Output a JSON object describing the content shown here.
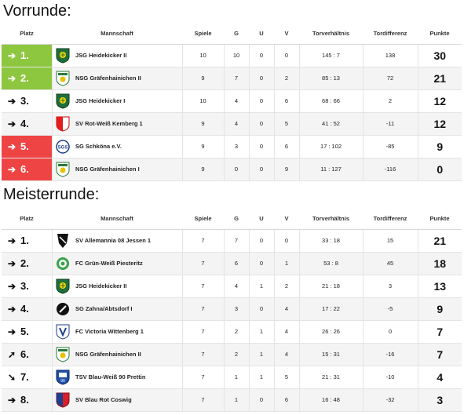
{
  "vorrunde": {
    "title": "Vorrunde:",
    "headers": [
      "Platz",
      "Mannschaft",
      "Spiele",
      "G",
      "U",
      "V",
      "Torverhältnis",
      "Tordifferenz",
      "Punkte"
    ],
    "rows": [
      {
        "arrow": "➔",
        "rank": "1.",
        "team": "JSG Heidekicker II",
        "spiele": "10",
        "g": "10",
        "u": "0",
        "v": "0",
        "tore": "145 : 7",
        "diff": "138",
        "punkte": "30",
        "highlight": "green",
        "crest": "heide"
      },
      {
        "arrow": "➔",
        "rank": "2.",
        "team": "NSG Gräfenhainichen II",
        "spiele": "9",
        "g": "7",
        "u": "0",
        "v": "2",
        "tore": "85 : 13",
        "diff": "72",
        "punkte": "21",
        "highlight": "green",
        "crest": "graefen"
      },
      {
        "arrow": "➔",
        "rank": "3.",
        "team": "JSG Heidekicker I",
        "spiele": "10",
        "g": "4",
        "u": "0",
        "v": "6",
        "tore": "68 : 66",
        "diff": "2",
        "punkte": "12",
        "highlight": "",
        "crest": "heide"
      },
      {
        "arrow": "➔",
        "rank": "4.",
        "team": "SV Rot-Weiß Kemberg 1",
        "spiele": "9",
        "g": "4",
        "u": "0",
        "v": "5",
        "tore": "41 : 52",
        "diff": "-11",
        "punkte": "12",
        "highlight": "",
        "crest": "kemberg"
      },
      {
        "arrow": "➔",
        "rank": "5.",
        "team": "SG Schköna e.V.",
        "spiele": "9",
        "g": "3",
        "u": "0",
        "v": "6",
        "tore": "17 : 102",
        "diff": "-85",
        "punkte": "9",
        "highlight": "red",
        "crest": "schkoena"
      },
      {
        "arrow": "➔",
        "rank": "6.",
        "team": "NSG Gräfenhainichen I",
        "spiele": "9",
        "g": "0",
        "u": "0",
        "v": "9",
        "tore": "11 : 127",
        "diff": "-116",
        "punkte": "0",
        "highlight": "red",
        "crest": "graefen"
      }
    ]
  },
  "meisterrunde": {
    "title": "Meisterrunde:",
    "headers": [
      "Platz",
      "Mannschaft",
      "Spiele",
      "G",
      "U",
      "V",
      "Torverhältnis",
      "Tordifferenz",
      "Punkte"
    ],
    "rows": [
      {
        "arrow": "➔",
        "rank": "1.",
        "team": "SV Allemannia 08 Jessen 1",
        "spiele": "7",
        "g": "7",
        "u": "0",
        "v": "0",
        "tore": "33 : 18",
        "diff": "15",
        "punkte": "21",
        "highlight": "",
        "crest": "jessen"
      },
      {
        "arrow": "➔",
        "rank": "2.",
        "team": "FC Grün-Weiß Piesteritz",
        "spiele": "7",
        "g": "6",
        "u": "0",
        "v": "1",
        "tore": "53 : 8",
        "diff": "45",
        "punkte": "18",
        "highlight": "",
        "crest": "piesteritz"
      },
      {
        "arrow": "➔",
        "rank": "3.",
        "team": "JSG Heidekicker II",
        "spiele": "7",
        "g": "4",
        "u": "1",
        "v": "2",
        "tore": "21 : 18",
        "diff": "3",
        "punkte": "13",
        "highlight": "",
        "crest": "heide"
      },
      {
        "arrow": "➔",
        "rank": "4.",
        "team": "SG Zahna/Abtsdorf I",
        "spiele": "7",
        "g": "3",
        "u": "0",
        "v": "4",
        "tore": "17 : 22",
        "diff": "-5",
        "punkte": "9",
        "highlight": "",
        "crest": "zahna"
      },
      {
        "arrow": "➔",
        "rank": "5.",
        "team": "FC Victoria Wittenberg 1",
        "spiele": "7",
        "g": "2",
        "u": "1",
        "v": "4",
        "tore": "26 : 26",
        "diff": "0",
        "punkte": "7",
        "highlight": "",
        "crest": "victoria"
      },
      {
        "arrow": "➚",
        "rank": "6.",
        "team": "NSG Gräfenhainichen II",
        "spiele": "7",
        "g": "2",
        "u": "1",
        "v": "4",
        "tore": "15 : 31",
        "diff": "-16",
        "punkte": "7",
        "highlight": "",
        "crest": "graefen"
      },
      {
        "arrow": "➘",
        "rank": "7.",
        "team": "TSV Blau-Weiß 90 Prettin",
        "spiele": "7",
        "g": "1",
        "u": "1",
        "v": "5",
        "tore": "21 : 31",
        "diff": "-10",
        "punkte": "4",
        "highlight": "",
        "crest": "prettin"
      },
      {
        "arrow": "➔",
        "rank": "8.",
        "team": "SV Blau Rot Coswig",
        "spiele": "7",
        "g": "1",
        "u": "0",
        "v": "6",
        "tore": "16 : 48",
        "diff": "-32",
        "punkte": "3",
        "highlight": "",
        "crest": "coswig"
      }
    ]
  },
  "colors": {
    "promotion": "#8dc63f",
    "relegation": "#ef4444",
    "row_alt": "#f4f4f4"
  }
}
